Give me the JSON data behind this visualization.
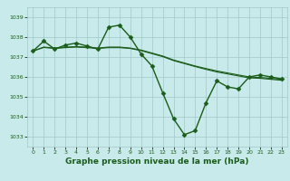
{
  "background_color": "#c8eaea",
  "grid_color": "#a0c8c8",
  "line_color": "#1a5c1a",
  "marker_color": "#1a5c1a",
  "xlabel": "Graphe pression niveau de la mer (hPa)",
  "xlabel_fontsize": 6.5,
  "ylim": [
    1032.5,
    1039.5
  ],
  "xlim": [
    -0.5,
    23.5
  ],
  "yticks": [
    1033,
    1034,
    1035,
    1036,
    1037,
    1038,
    1039
  ],
  "xticks": [
    0,
    1,
    2,
    3,
    4,
    5,
    6,
    7,
    8,
    9,
    10,
    11,
    12,
    13,
    14,
    15,
    16,
    17,
    18,
    19,
    20,
    21,
    22,
    23
  ],
  "series": [
    {
      "x": [
        0,
        1,
        2,
        3,
        4,
        5,
        6,
        7,
        8,
        9,
        10,
        11,
        12,
        13,
        14,
        15,
        16,
        17,
        18,
        19,
        20,
        21,
        22,
        23
      ],
      "y": [
        1037.3,
        1037.8,
        1037.4,
        1037.6,
        1037.7,
        1037.55,
        1037.4,
        1038.5,
        1038.6,
        1038.0,
        1037.15,
        1036.55,
        1035.2,
        1033.9,
        1033.1,
        1033.3,
        1034.7,
        1035.8,
        1035.5,
        1035.4,
        1036.0,
        1036.1,
        1036.0,
        1035.9
      ],
      "marker": "D",
      "markersize": 2.5,
      "linewidth": 1.0
    },
    {
      "x": [
        0,
        1,
        2,
        3,
        4,
        5,
        6,
        7,
        8,
        9,
        10,
        11,
        12,
        13,
        14,
        15,
        16,
        17,
        18,
        19,
        20,
        21,
        22,
        23
      ],
      "y": [
        1037.3,
        1037.5,
        1037.45,
        1037.5,
        1037.52,
        1037.5,
        1037.45,
        1037.5,
        1037.5,
        1037.45,
        1037.35,
        1037.2,
        1037.05,
        1036.85,
        1036.7,
        1036.55,
        1036.42,
        1036.3,
        1036.2,
        1036.1,
        1036.0,
        1035.97,
        1035.93,
        1035.88
      ],
      "marker": null,
      "markersize": 0,
      "linewidth": 0.8
    },
    {
      "x": [
        0,
        1,
        2,
        3,
        4,
        5,
        6,
        7,
        8,
        9,
        10,
        11,
        12,
        13,
        14,
        15,
        16,
        17,
        18,
        19,
        20,
        21,
        22,
        23
      ],
      "y": [
        1037.3,
        1037.48,
        1037.43,
        1037.47,
        1037.5,
        1037.47,
        1037.43,
        1037.47,
        1037.47,
        1037.43,
        1037.32,
        1037.17,
        1037.02,
        1036.82,
        1036.67,
        1036.52,
        1036.38,
        1036.25,
        1036.15,
        1036.05,
        1035.95,
        1035.93,
        1035.88,
        1035.83
      ],
      "marker": null,
      "markersize": 0,
      "linewidth": 0.8
    }
  ]
}
